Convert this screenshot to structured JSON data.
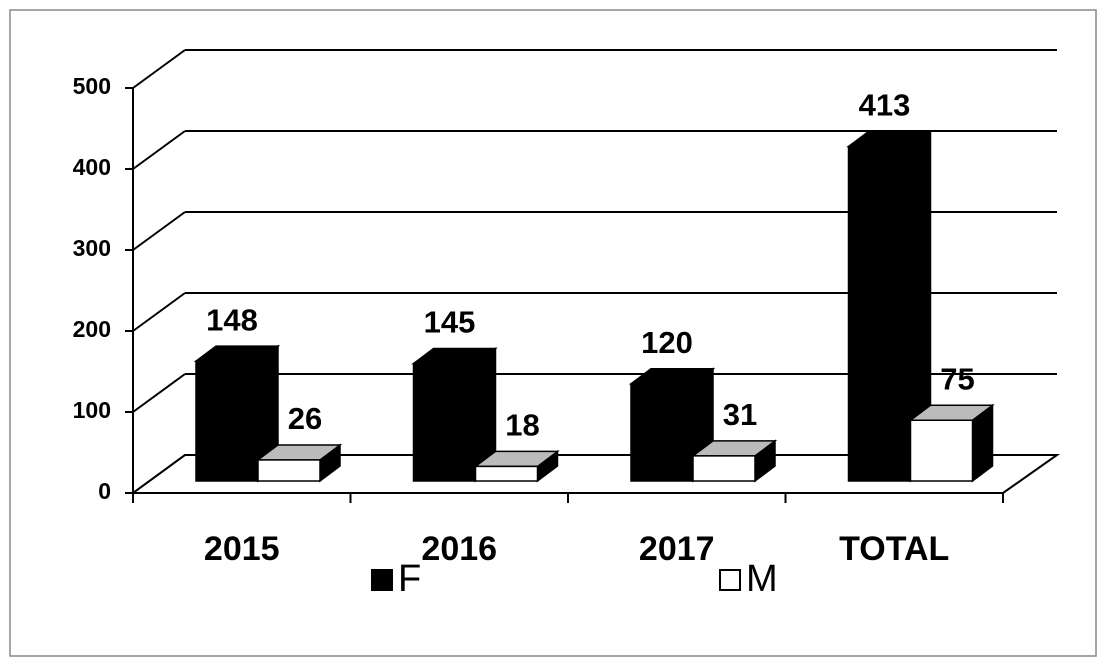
{
  "chart_data": {
    "type": "bar3d",
    "categories": [
      "2015",
      "2016",
      "2017",
      "TOTAL"
    ],
    "series": [
      {
        "name": "F",
        "color": "#000000",
        "values": [
          148,
          145,
          120,
          413
        ]
      },
      {
        "name": "M",
        "color": "#ffffff",
        "values": [
          26,
          18,
          31,
          75
        ]
      }
    ],
    "ylim": [
      0,
      500
    ],
    "yticks": [
      0,
      100,
      200,
      300,
      400,
      500
    ],
    "grid": true,
    "legend": "bottom"
  }
}
